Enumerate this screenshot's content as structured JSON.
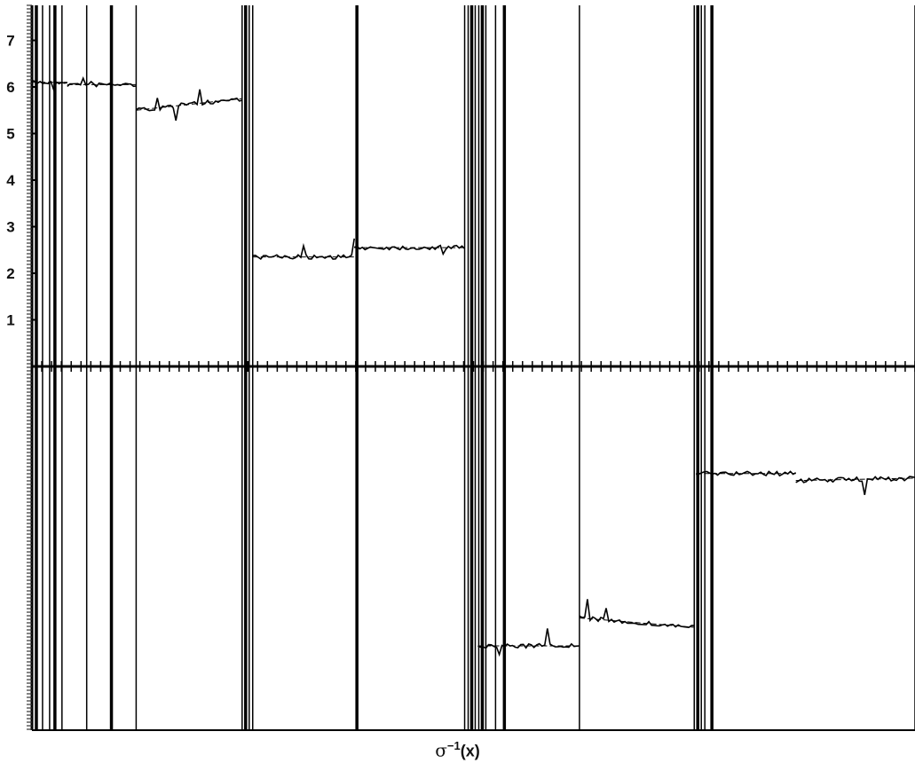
{
  "chart_data": {
    "type": "line",
    "title": "",
    "xlabel": {
      "symbol": "σ",
      "exponent": "−1",
      "argument": "(x)"
    },
    "ylabel": "",
    "y_ticks": [
      "1",
      "2",
      "3",
      "4",
      "5",
      "6",
      "7"
    ],
    "xlim": [
      0,
      1
    ],
    "ylim": [
      -7.3,
      7.3
    ],
    "grid": false,
    "legend": "none",
    "line_color": "#000000",
    "series": [
      {
        "name": "",
        "segments": [
          {
            "x": [
              0.0,
              0.04
            ],
            "y": [
              6.1,
              6.1
            ]
          },
          {
            "x": [
              0.04,
              0.118
            ],
            "y": [
              6.05,
              6.05
            ]
          },
          {
            "x": [
              0.118,
              0.238
            ],
            "y": [
              5.5,
              5.75
            ]
          },
          {
            "x": [
              0.25,
              0.365
            ],
            "y": [
              2.35,
              2.35
            ]
          },
          {
            "x": [
              0.365,
              0.49
            ],
            "y": [
              2.55,
              2.55
            ]
          },
          {
            "x": [
              0.505,
              0.62
            ],
            "y": [
              -6.0,
              -6.0
            ]
          },
          {
            "x": [
              0.62,
              0.75
            ],
            "y": [
              -5.4,
              -5.6
            ]
          },
          {
            "x": [
              0.752,
              0.865
            ],
            "y": [
              -2.3,
              -2.3
            ]
          },
          {
            "x": [
              0.865,
              1.0
            ],
            "y": [
              -2.45,
              -2.4
            ]
          }
        ]
      }
    ],
    "vertical_spikes_x": [
      0.005,
      0.012,
      0.02,
      0.026,
      0.034,
      0.062,
      0.09,
      0.118,
      0.238,
      0.242,
      0.246,
      0.25,
      0.368,
      0.49,
      0.494,
      0.498,
      0.502,
      0.506,
      0.51,
      0.514,
      0.525,
      0.535,
      0.62,
      0.75,
      0.754,
      0.758,
      0.762,
      0.77,
      1.0
    ]
  }
}
